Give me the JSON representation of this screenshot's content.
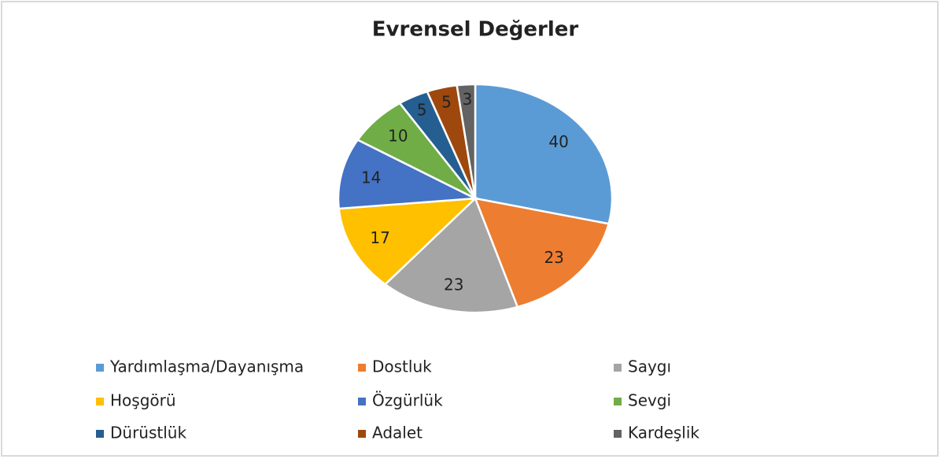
{
  "chart_data": {
    "type": "pie",
    "title": "Evrensel Değerler",
    "categories": [
      "Yardımlaşma/Dayanışma",
      "Dostluk",
      "Saygı",
      "Hoşgörü",
      "Özgürlük",
      "Sevgi",
      "Dürüstlük",
      "Adalet",
      "Kardeşlik"
    ],
    "values": [
      40,
      23,
      23,
      17,
      14,
      10,
      5,
      5,
      3
    ],
    "colors": [
      "#5b9bd5",
      "#ed7d31",
      "#a5a5a5",
      "#ffc000",
      "#4472c4",
      "#70ad47",
      "#255e91",
      "#9e480e",
      "#636363"
    ],
    "legend": "bottom"
  }
}
